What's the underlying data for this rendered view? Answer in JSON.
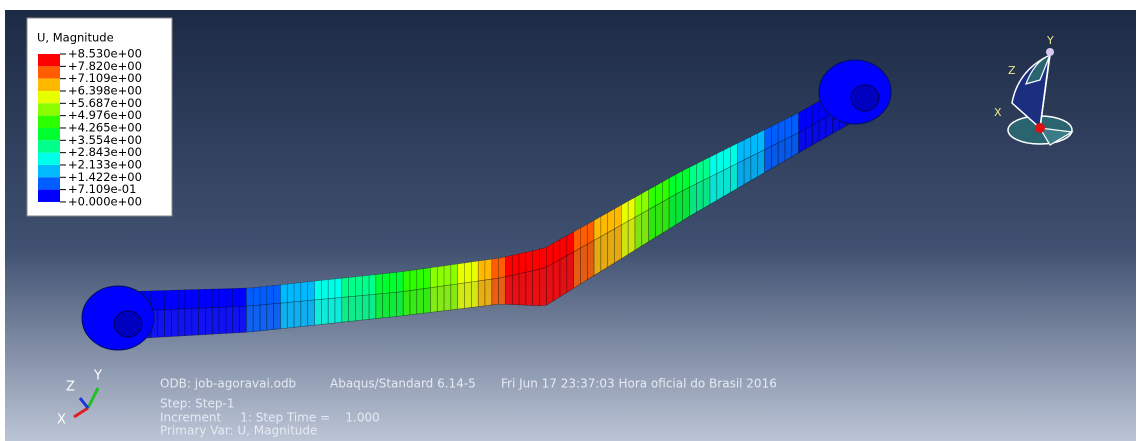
{
  "legend": {
    "title": "U, Magnitude",
    "values": [
      "+8.530e+00",
      "+7.820e+00",
      "+7.109e+00",
      "+6.398e+00",
      "+5.687e+00",
      "+4.976e+00",
      "+4.265e+00",
      "+3.554e+00",
      "+2.843e+00",
      "+2.133e+00",
      "+1.422e+00",
      "+7.109e-01",
      "+0.000e+00"
    ],
    "colors": [
      "#ff0000",
      "#ff5d00",
      "#ffb900",
      "#e8ff00",
      "#8bff00",
      "#2eff00",
      "#00ff2e",
      "#00ff8b",
      "#00ffe8",
      "#00b9ff",
      "#005dff",
      "#0000ff"
    ]
  },
  "info": {
    "odb": "ODB: job-agoravai.odb",
    "solver": "Abaqus/Standard 6.14-5",
    "date": "Fri Jun 17 23:37:03 Hora oficial do Brasil 2016",
    "step": "Step: Step-1",
    "increment": "Increment     1: Step Time =    1.000",
    "primary_var": "Primary Var: U, Magnitude"
  },
  "triad": {
    "x": "X",
    "y": "Y",
    "z": "Z"
  },
  "view_triad": {
    "x": "X",
    "y": "Y",
    "z": "Z"
  }
}
